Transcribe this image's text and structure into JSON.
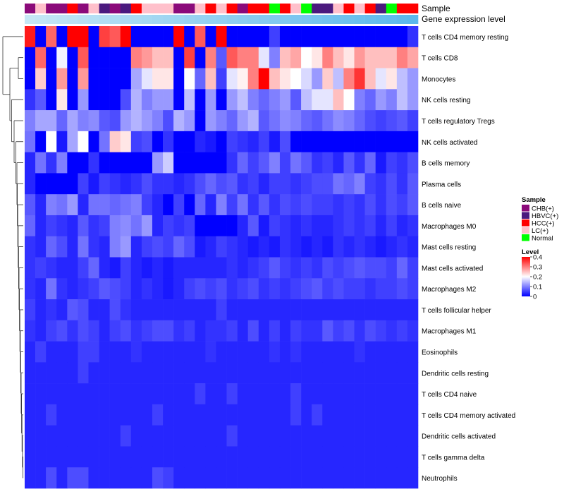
{
  "chart_data": {
    "type": "heatmap",
    "title": "",
    "annotation_labels": {
      "sample": "Sample",
      "level": "Gene expression level"
    },
    "sample_legend": {
      "title": "Sample",
      "entries": [
        {
          "key": "CHB",
          "label": "CHB(+)",
          "color": "#8b0a7a"
        },
        {
          "key": "HBVC",
          "label": "HBVC(+)",
          "color": "#4b1a7e"
        },
        {
          "key": "HCC",
          "label": "HCC(+)",
          "color": "#ff0000"
        },
        {
          "key": "LC",
          "label": "LC(+)",
          "color": "#ffc0cb"
        },
        {
          "key": "Normal",
          "label": "Normal",
          "color": "#00ff00"
        }
      ]
    },
    "level_legend": {
      "title": "Level",
      "ticks": [
        "0.4",
        "0.3",
        "0.2",
        "0.1",
        "0"
      ],
      "range": [
        0,
        0.4
      ],
      "colors": {
        "low": "#0000ff",
        "mid": "#ffffff",
        "high": "#ff0000"
      }
    },
    "level_bar_colors": [
      "#c6e7f5",
      "#5bb8ec"
    ],
    "samples": [
      "CHB",
      "LC",
      "CHB",
      "CHB",
      "HCC",
      "CHB",
      "LC",
      "HBVC",
      "CHB",
      "HBVC",
      "HCC",
      "LC",
      "LC",
      "LC",
      "CHB",
      "CHB",
      "LC",
      "HCC",
      "LC",
      "HCC",
      "CHB",
      "HCC",
      "HCC",
      "Normal",
      "HCC",
      "LC",
      "Normal",
      "HBVC",
      "HBVC",
      "LC",
      "HCC",
      "LC",
      "HCC",
      "HBVC",
      "Normal",
      "HCC",
      "HCC"
    ],
    "rows": [
      "T cells CD4 memory resting",
      "T cells CD8",
      "Monocytes",
      "NK cells resting",
      "T cells regulatory  Tregs",
      "NK cells activated",
      "B cells memory",
      "Plasma cells",
      "B cells naive",
      "Macrophages M0",
      "Mast cells resting",
      "Mast cells activated",
      "Macrophages M2",
      "T cells follicular helper",
      "Macrophages M1",
      "Eosinophils",
      "Dendritic cells resting",
      "T cells CD4 naive",
      "T cells CD4 memory activated",
      "Dendritic cells activated",
      "T cells gamma delta",
      "Neutrophils"
    ],
    "values": [
      [
        0.38,
        0,
        0.32,
        0,
        0.4,
        0.4,
        0,
        0.35,
        0.33,
        0.4,
        0,
        0,
        0,
        0,
        0.4,
        0,
        0.33,
        0,
        0.4,
        0,
        0,
        0,
        0,
        0.05,
        0,
        0,
        0,
        0,
        0,
        0,
        0,
        0,
        0,
        0,
        0,
        0,
        0.04
      ],
      [
        0,
        0.32,
        0,
        0.19,
        0,
        0.33,
        0,
        0,
        0,
        0,
        0.3,
        0.28,
        0.25,
        0.25,
        0,
        0.35,
        0,
        0.3,
        0.07,
        0.33,
        0.3,
        0.3,
        0.18,
        0.1,
        0.25,
        0.27,
        0.2,
        0.22,
        0.3,
        0.25,
        0.22,
        0.28,
        0.25,
        0.25,
        0.25,
        0.3,
        0.27
      ],
      [
        0,
        0.24,
        0,
        0.28,
        0,
        0.28,
        0,
        0,
        0,
        0,
        0.13,
        0.18,
        0.22,
        0.22,
        0,
        0.2,
        0.08,
        0.25,
        0.05,
        0.18,
        0.21,
        0.3,
        0.4,
        0.25,
        0.22,
        0.2,
        0.17,
        0.12,
        0.24,
        0.15,
        0.3,
        0.36,
        0.25,
        0.18,
        0.22,
        0.15,
        0.12
      ],
      [
        0.04,
        0.07,
        0,
        0.22,
        0,
        0.12,
        0,
        0,
        0,
        0.06,
        0.14,
        0.1,
        0.12,
        0.12,
        0,
        0.15,
        0,
        0.12,
        0,
        0.12,
        0.15,
        0.1,
        0.08,
        0.1,
        0.12,
        0.07,
        0.15,
        0.18,
        0.18,
        0.25,
        0.2,
        0.1,
        0.08,
        0.12,
        0.1,
        0.15,
        0.12
      ],
      [
        0.1,
        0.13,
        0.13,
        0.08,
        0.13,
        0.1,
        0.11,
        0.07,
        0.06,
        0.12,
        0.14,
        0.12,
        0.1,
        0.06,
        0.14,
        0.12,
        0,
        0.12,
        0.1,
        0.08,
        0.12,
        0.14,
        0.07,
        0.09,
        0.11,
        0.1,
        0.08,
        0.07,
        0.09,
        0.11,
        0.1,
        0.08,
        0.06,
        0.05,
        0.06,
        0.07,
        0.05
      ],
      [
        0.09,
        0,
        0.2,
        0.02,
        0.13,
        0.2,
        0,
        0.09,
        0.24,
        0.22,
        0.05,
        0.06,
        0,
        0.04,
        0,
        0,
        0.03,
        0.02,
        0,
        0.05,
        0.04,
        0.03,
        0.05,
        0.02,
        0.06,
        0,
        0,
        0,
        0,
        0,
        0,
        0,
        0,
        0,
        0,
        0,
        0
      ],
      [
        0.03,
        0.09,
        0.04,
        0.1,
        0,
        0,
        0.04,
        0,
        0,
        0,
        0,
        0,
        0.12,
        0.16,
        0,
        0,
        0,
        0,
        0,
        0.04,
        0.08,
        0.05,
        0.07,
        0.1,
        0.05,
        0.09,
        0.07,
        0.04,
        0.05,
        0.03,
        0.07,
        0.04,
        0.08,
        0.02,
        0.05,
        0.04,
        0.06
      ],
      [
        0.03,
        0,
        0,
        0,
        0,
        0.05,
        0.02,
        0.05,
        0.04,
        0.03,
        0.04,
        0.06,
        0.04,
        0.04,
        0.03,
        0.04,
        0.06,
        0.08,
        0.06,
        0.07,
        0.04,
        0.05,
        0.03,
        0.05,
        0.05,
        0.04,
        0.05,
        0.06,
        0.06,
        0.09,
        0.08,
        0.1,
        0.05,
        0.04,
        0.06,
        0.04,
        0.07
      ],
      [
        0.07,
        0.03,
        0.1,
        0.09,
        0.12,
        0.03,
        0.09,
        0.09,
        0.08,
        0.09,
        0.1,
        0.05,
        0.03,
        0,
        0.05,
        0,
        0.08,
        0.03,
        0.1,
        0.05,
        0.09,
        0.04,
        0.07,
        0.04,
        0.06,
        0.05,
        0.06,
        0.05,
        0.05,
        0.04,
        0.05,
        0.04,
        0.06,
        0.04,
        0.06,
        0.05,
        0.07
      ],
      [
        0.08,
        0.03,
        0.05,
        0.04,
        0.03,
        0.07,
        0.04,
        0.05,
        0.1,
        0.11,
        0.09,
        0.12,
        0.03,
        0.05,
        0.04,
        0.05,
        0,
        0,
        0,
        0,
        0.03,
        0.07,
        0.02,
        0.05,
        0.04,
        0.03,
        0.04,
        0.03,
        0.03,
        0.04,
        0.05,
        0.04,
        0.05,
        0.03,
        0.05,
        0.03,
        0.04
      ],
      [
        0.04,
        0.03,
        0.08,
        0.06,
        0.03,
        0.09,
        0.04,
        0.03,
        0.1,
        0.12,
        0.03,
        0.05,
        0.06,
        0.05,
        0.08,
        0.06,
        0.02,
        0.03,
        0.05,
        0.04,
        0.03,
        0.02,
        0.03,
        0.02,
        0.04,
        0.03,
        0.02,
        0.03,
        0.02,
        0.04,
        0.03,
        0.04,
        0.03,
        0.02,
        0.03,
        0.04,
        0.03
      ],
      [
        0.04,
        0.05,
        0.04,
        0.03,
        0.03,
        0.05,
        0.08,
        0.03,
        0.02,
        0.05,
        0.03,
        0.02,
        0.03,
        0.02,
        0.03,
        0.03,
        0.03,
        0.03,
        0.03,
        0.04,
        0.03,
        0.04,
        0.05,
        0.07,
        0.05,
        0.04,
        0.05,
        0.04,
        0.06,
        0.05,
        0.06,
        0.07,
        0.06,
        0.06,
        0.05,
        0.08,
        0.05
      ],
      [
        0.04,
        0.03,
        0.09,
        0.04,
        0.03,
        0.04,
        0.05,
        0.07,
        0.06,
        0.05,
        0.03,
        0.04,
        0.03,
        0.02,
        0.03,
        0.05,
        0.06,
        0.05,
        0.06,
        0.04,
        0.05,
        0.06,
        0.04,
        0.05,
        0.04,
        0.05,
        0.06,
        0.07,
        0.05,
        0.06,
        0.05,
        0.05,
        0.04,
        0.05,
        0.05,
        0.06,
        0.05
      ],
      [
        0.05,
        0.03,
        0.04,
        0.03,
        0.07,
        0.06,
        0.03,
        0.03,
        0.06,
        0.04,
        0.03,
        0.03,
        0.03,
        0.03,
        0.03,
        0.03,
        0.03,
        0.03,
        0.05,
        0.03,
        0.03,
        0.03,
        0.03,
        0.03,
        0.03,
        0.03,
        0.03,
        0.03,
        0.03,
        0.03,
        0.03,
        0.03,
        0.03,
        0.03,
        0.03,
        0.03,
        0.03
      ],
      [
        0.04,
        0.03,
        0.05,
        0.06,
        0.04,
        0.06,
        0.05,
        0.03,
        0.05,
        0.06,
        0.04,
        0.05,
        0.06,
        0.06,
        0.04,
        0.05,
        0.03,
        0.04,
        0.04,
        0.05,
        0.03,
        0.06,
        0.03,
        0.05,
        0.03,
        0.05,
        0.04,
        0.04,
        0.07,
        0.05,
        0.06,
        0.04,
        0.06,
        0.05,
        0.04,
        0.05,
        0.04
      ],
      [
        0.03,
        0.05,
        0.03,
        0.03,
        0.03,
        0.05,
        0.05,
        0.03,
        0.03,
        0.03,
        0.04,
        0.03,
        0.03,
        0.03,
        0.03,
        0.03,
        0.03,
        0.04,
        0.03,
        0.03,
        0.03,
        0.03,
        0.03,
        0.04,
        0.03,
        0.04,
        0.03,
        0.03,
        0.03,
        0.03,
        0.03,
        0.04,
        0.03,
        0.03,
        0.03,
        0.03,
        0.03
      ],
      [
        0.03,
        0.03,
        0.03,
        0.03,
        0.03,
        0.05,
        0.03,
        0.03,
        0.03,
        0.03,
        0.03,
        0.03,
        0.03,
        0.03,
        0.03,
        0.03,
        0.03,
        0.03,
        0.03,
        0.03,
        0.03,
        0.03,
        0.03,
        0.03,
        0.03,
        0.03,
        0.03,
        0.03,
        0.03,
        0.03,
        0.03,
        0.03,
        0.03,
        0.03,
        0.03,
        0.03,
        0.03
      ],
      [
        0.03,
        0.03,
        0.03,
        0.03,
        0.03,
        0.03,
        0.03,
        0.03,
        0.03,
        0.03,
        0.03,
        0.03,
        0.03,
        0.03,
        0.03,
        0.03,
        0.05,
        0.03,
        0.03,
        0.05,
        0.03,
        0.03,
        0.03,
        0.03,
        0.03,
        0.05,
        0.03,
        0.03,
        0.03,
        0.03,
        0.03,
        0.03,
        0.03,
        0.03,
        0.03,
        0.03,
        0.03
      ],
      [
        0.03,
        0.03,
        0.05,
        0.03,
        0.03,
        0.03,
        0.03,
        0.03,
        0.03,
        0.03,
        0.03,
        0.03,
        0.05,
        0.03,
        0.03,
        0.03,
        0.03,
        0.03,
        0.03,
        0.03,
        0.03,
        0.03,
        0.03,
        0.03,
        0.03,
        0.05,
        0.03,
        0.05,
        0.03,
        0.03,
        0.03,
        0.03,
        0.03,
        0.03,
        0.03,
        0.03,
        0.03
      ],
      [
        0.03,
        0.03,
        0.03,
        0.03,
        0.03,
        0.03,
        0.03,
        0.03,
        0.03,
        0.05,
        0.03,
        0.03,
        0.03,
        0.03,
        0.03,
        0.03,
        0.03,
        0.03,
        0.03,
        0.05,
        0.03,
        0.03,
        0.03,
        0.03,
        0.03,
        0.03,
        0.03,
        0.03,
        0.03,
        0.03,
        0.03,
        0.03,
        0.03,
        0.03,
        0.03,
        0.03,
        0.03
      ],
      [
        0.03,
        0.03,
        0.03,
        0.03,
        0.03,
        0.03,
        0.03,
        0.03,
        0.03,
        0.03,
        0.03,
        0.03,
        0.03,
        0.03,
        0.03,
        0.03,
        0.03,
        0.03,
        0.03,
        0.03,
        0.03,
        0.03,
        0.03,
        0.03,
        0.03,
        0.03,
        0.03,
        0.03,
        0.03,
        0.03,
        0.03,
        0.03,
        0.03,
        0.03,
        0.03,
        0.03,
        0.03
      ],
      [
        0.03,
        0.03,
        0.06,
        0.03,
        0.06,
        0.06,
        0.03,
        0.03,
        0.03,
        0.03,
        0.03,
        0.03,
        0.06,
        0.05,
        0.03,
        0.03,
        0.03,
        0.03,
        0.03,
        0.03,
        0.03,
        0.03,
        0.03,
        0.03,
        0.03,
        0.03,
        0.03,
        0.03,
        0.03,
        0.03,
        0.03,
        0.03,
        0.03,
        0.03,
        0.03,
        0.03,
        0.03
      ]
    ]
  }
}
